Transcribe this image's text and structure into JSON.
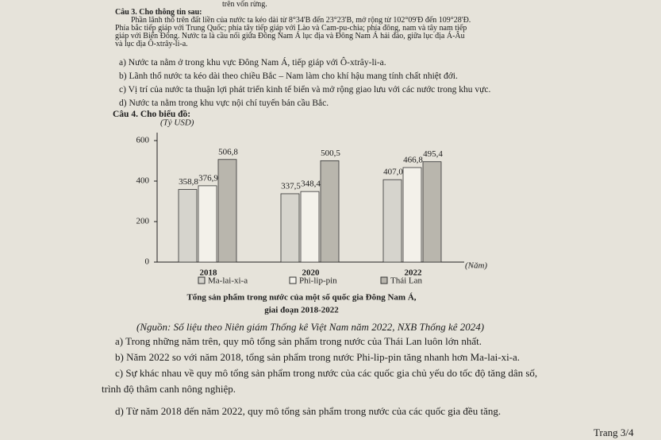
{
  "header_fragment": "trên vốn rừng.",
  "question3": {
    "label": "Câu 3. Cho thông tin sau:",
    "passage": [
      "Phần lãnh thổ trên đất liền của nước ta kéo dài từ 8°34'B đến 23°23'B, mở rộng từ 102°09'Đ đến 109°28'Đ.",
      "Phía bắc tiếp giáp với Trung Quốc; phía tây tiếp giáp với Lào và Cam-pu-chia; phía đông, nam và tây nam tiếp",
      "giáp với Biển Đông. Nước ta là cầu nối giữa Đông Nam Á lục địa và Đông Nam Á hải đảo, giữa lục địa Á-Âu",
      "và lục địa Ô-xtrây-li-a."
    ],
    "options": [
      "a) Nước ta nằm ở trong khu vực Đông Nam Á, tiếp giáp với Ô-xtrây-li-a.",
      "b) Lãnh thổ nước ta kéo dài theo chiều Bắc – Nam làm cho khí hậu mang tính chất nhiệt đới.",
      "c) Vị trí của nước ta thuận lợi phát triển kinh tế biển và mở rộng giao lưu với các nước trong khu vực.",
      "d) Nước ta nằm trong khu vực nội chí tuyến bán cầu Bắc."
    ]
  },
  "question4": {
    "label": "Câu 4. Cho biểu đồ:",
    "source": "(Nguồn: Số liệu theo Niên giám Thống kê Việt Nam năm 2022, NXB Thống kê 2024)",
    "options": [
      "a) Trong những năm trên, quy mô tổng sản phẩm trong nước của Thái Lan luôn lớn nhất.",
      "b) Năm 2022 so với năm 2018, tổng sản phẩm trong nước Phi-lip-pin tăng nhanh hơn Ma-lai-xi-a.",
      "c) Sự khác nhau về quy mô tổng sản phẩm trong nước của các quốc gia chủ yếu do tốc độ tăng dân số,",
      "trình độ thâm canh nông nghiệp.",
      "d) Từ năm 2018 đến năm 2022, quy mô tổng sản phẩm trong nước của các quốc gia đều tăng."
    ]
  },
  "chart_data": {
    "type": "bar",
    "title": [
      "Tổng sản phẩm trong nước của một số quốc gia Đông Nam Á,",
      "giai đoạn 2018-2022"
    ],
    "y_label": "(Tỷ USD)",
    "x_label": "(Năm)",
    "categories": [
      "2018",
      "2020",
      "2022"
    ],
    "series": [
      {
        "name": "Ma-lai-xi-a",
        "color": "#d6d4cd",
        "values": [
          358.8,
          337.5,
          407.0
        ],
        "value_labels": [
          "358,8",
          "337,5",
          "407,0"
        ]
      },
      {
        "name": "Phi-lip-pin",
        "color": "#f3f1ea",
        "values": [
          376.9,
          348.4,
          466.8
        ],
        "value_labels": [
          "376,9",
          "348,4",
          "466,8"
        ]
      },
      {
        "name": "Thái Lan",
        "color": "#b9b6ad",
        "values": [
          506.8,
          500.5,
          495.4
        ],
        "value_labels": [
          "506,8",
          "500,5",
          "495,4"
        ]
      }
    ],
    "ylim": [
      0,
      600
    ],
    "yticks": [
      0,
      200,
      400,
      600
    ]
  },
  "footer": "Trang 3/4"
}
